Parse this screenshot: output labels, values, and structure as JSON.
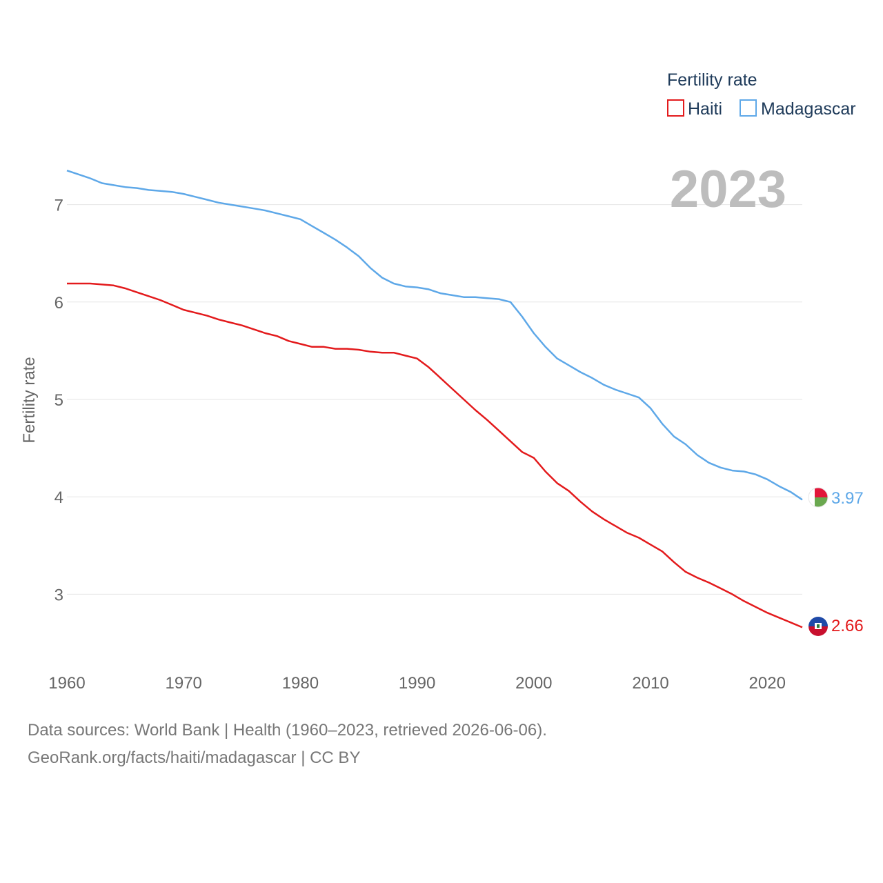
{
  "chart_data": {
    "type": "line",
    "title": "",
    "ylabel": "Fertility rate",
    "xlabel": "",
    "year_label": "2023",
    "xlim": [
      1960,
      2023
    ],
    "ylim": [
      2.5,
      7.5
    ],
    "x_ticks": [
      1960,
      1970,
      1980,
      1990,
      2000,
      2010,
      2020
    ],
    "y_ticks": [
      3,
      4,
      5,
      6,
      7
    ],
    "legend": {
      "title": "Fertility rate",
      "position": "top-right"
    },
    "series": [
      {
        "name": "Haiti",
        "color": "#e31a1c",
        "end_label": "2.66",
        "x": [
          1960,
          1961,
          1962,
          1963,
          1964,
          1965,
          1966,
          1967,
          1968,
          1969,
          1970,
          1971,
          1972,
          1973,
          1974,
          1975,
          1976,
          1977,
          1978,
          1979,
          1980,
          1981,
          1982,
          1983,
          1984,
          1985,
          1986,
          1987,
          1988,
          1989,
          1990,
          1991,
          1992,
          1993,
          1994,
          1995,
          1996,
          1997,
          1998,
          1999,
          2000,
          2001,
          2002,
          2003,
          2004,
          2005,
          2006,
          2007,
          2008,
          2009,
          2010,
          2011,
          2012,
          2013,
          2014,
          2015,
          2016,
          2017,
          2018,
          2019,
          2020,
          2021,
          2022,
          2023
        ],
        "values": [
          6.19,
          6.19,
          6.19,
          6.18,
          6.17,
          6.14,
          6.1,
          6.06,
          6.02,
          5.97,
          5.92,
          5.89,
          5.86,
          5.82,
          5.79,
          5.76,
          5.72,
          5.68,
          5.65,
          5.6,
          5.57,
          5.54,
          5.54,
          5.52,
          5.52,
          5.51,
          5.49,
          5.48,
          5.48,
          5.45,
          5.42,
          5.33,
          5.22,
          5.11,
          5.0,
          4.89,
          4.79,
          4.68,
          4.57,
          4.46,
          4.4,
          4.26,
          4.14,
          4.06,
          3.95,
          3.85,
          3.77,
          3.7,
          3.63,
          3.58,
          3.51,
          3.44,
          3.33,
          3.23,
          3.17,
          3.12,
          3.06,
          3.0,
          2.93,
          2.87,
          2.81,
          2.76,
          2.71,
          2.66
        ]
      },
      {
        "name": "Madagascar",
        "color": "#5ea8e8",
        "end_label": "3.97",
        "x": [
          1960,
          1961,
          1962,
          1963,
          1964,
          1965,
          1966,
          1967,
          1968,
          1969,
          1970,
          1971,
          1972,
          1973,
          1974,
          1975,
          1976,
          1977,
          1978,
          1979,
          1980,
          1981,
          1982,
          1983,
          1984,
          1985,
          1986,
          1987,
          1988,
          1989,
          1990,
          1991,
          1992,
          1993,
          1994,
          1995,
          1996,
          1997,
          1998,
          1999,
          2000,
          2001,
          2002,
          2003,
          2004,
          2005,
          2006,
          2007,
          2008,
          2009,
          2010,
          2011,
          2012,
          2013,
          2014,
          2015,
          2016,
          2017,
          2018,
          2019,
          2020,
          2021,
          2022,
          2023
        ],
        "values": [
          7.35,
          7.31,
          7.27,
          7.22,
          7.2,
          7.18,
          7.17,
          7.15,
          7.14,
          7.13,
          7.11,
          7.08,
          7.05,
          7.02,
          7.0,
          6.98,
          6.96,
          6.94,
          6.91,
          6.88,
          6.85,
          6.78,
          6.71,
          6.64,
          6.56,
          6.47,
          6.35,
          6.25,
          6.19,
          6.16,
          6.15,
          6.13,
          6.09,
          6.07,
          6.05,
          6.05,
          6.04,
          6.03,
          6.0,
          5.85,
          5.68,
          5.54,
          5.42,
          5.35,
          5.28,
          5.22,
          5.15,
          5.1,
          5.06,
          5.02,
          4.91,
          4.75,
          4.62,
          4.54,
          4.43,
          4.35,
          4.3,
          4.27,
          4.26,
          4.23,
          4.18,
          4.11,
          4.05,
          3.97
        ]
      }
    ]
  },
  "footer": {
    "line1": "Data sources: World Bank | Health (1960–2023, retrieved 2026-06-06).",
    "line2": "GeoRank.org/facts/haiti/madagascar | CC BY"
  }
}
